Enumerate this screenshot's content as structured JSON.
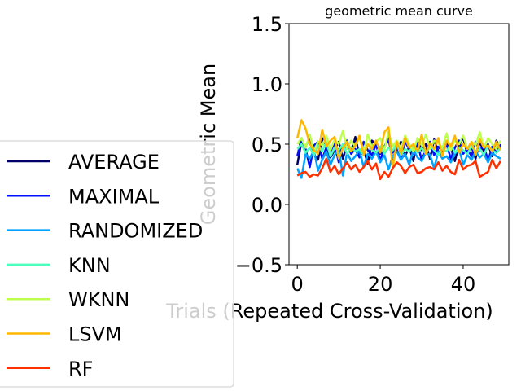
{
  "chart_data": {
    "type": "line",
    "title": "geometric mean curve",
    "xlabel": "Trials (Repeated Cross-Validation)",
    "ylabel": "Geometric Mean",
    "xlim": [
      -2,
      51
    ],
    "ylim": [
      -0.5,
      1.5
    ],
    "xticks": [
      0,
      20,
      40
    ],
    "xtick_labels": [
      "0",
      "20",
      "40"
    ],
    "yticks": [
      1.5,
      1.0,
      0.5,
      0.0,
      -0.5
    ],
    "ytick_labels": [
      "1.5",
      "1.0",
      "0.5",
      "0.0",
      "−0.5"
    ],
    "grid": false,
    "legend_position": "left, outside plot",
    "x": [
      0,
      1,
      2,
      3,
      4,
      5,
      6,
      7,
      8,
      9,
      10,
      11,
      12,
      13,
      14,
      15,
      16,
      17,
      18,
      19,
      20,
      21,
      22,
      23,
      24,
      25,
      26,
      27,
      28,
      29,
      30,
      31,
      32,
      33,
      34,
      35,
      36,
      37,
      38,
      39,
      40,
      41,
      42,
      43,
      44,
      45,
      46,
      47,
      48,
      49
    ],
    "series": [
      {
        "name": "AVERAGE",
        "color": "#00006b",
        "values": [
          0.33,
          0.52,
          0.48,
          0.55,
          0.41,
          0.37,
          0.55,
          0.47,
          0.39,
          0.45,
          0.52,
          0.38,
          0.5,
          0.42,
          0.56,
          0.4,
          0.45,
          0.34,
          0.53,
          0.5,
          0.42,
          0.48,
          0.55,
          0.36,
          0.46,
          0.52,
          0.4,
          0.48,
          0.36,
          0.55,
          0.45,
          0.5,
          0.38,
          0.54,
          0.44,
          0.41,
          0.52,
          0.47,
          0.36,
          0.5,
          0.55,
          0.42,
          0.48,
          0.38,
          0.52,
          0.44,
          0.5,
          0.4,
          0.53,
          0.46
        ]
      },
      {
        "name": "MAXIMAL",
        "color": "#0010ff",
        "values": [
          0.4,
          0.55,
          0.46,
          0.31,
          0.49,
          0.52,
          0.38,
          0.47,
          0.44,
          0.51,
          0.35,
          0.48,
          0.53,
          0.42,
          0.46,
          0.39,
          0.52,
          0.45,
          0.41,
          0.5,
          0.36,
          0.48,
          0.53,
          0.43,
          0.47,
          0.39,
          0.52,
          0.46,
          0.42,
          0.5,
          0.37,
          0.45,
          0.52,
          0.41,
          0.48,
          0.44,
          0.5,
          0.38,
          0.47,
          0.53,
          0.42,
          0.46,
          0.4,
          0.52,
          0.45,
          0.49,
          0.36,
          0.48,
          0.43,
          0.5
        ]
      },
      {
        "name": "RANDOMIZED",
        "color": "#00a2ff",
        "values": [
          0.3,
          0.22,
          0.42,
          0.38,
          0.45,
          0.28,
          0.37,
          0.44,
          0.33,
          0.41,
          0.46,
          0.24,
          0.43,
          0.36,
          0.4,
          0.45,
          0.31,
          0.42,
          0.38,
          0.44,
          0.35,
          0.41,
          0.29,
          0.4,
          0.44,
          0.37,
          0.42,
          0.33,
          0.45,
          0.39,
          0.36,
          0.43,
          0.41,
          0.3,
          0.44,
          0.38,
          0.4,
          0.35,
          0.42,
          0.46,
          0.33,
          0.41,
          0.37,
          0.44,
          0.39,
          0.42,
          0.35,
          0.43,
          0.4,
          0.38
        ]
      },
      {
        "name": "KNN",
        "color": "#4dffbd",
        "values": [
          0.46,
          0.5,
          0.43,
          0.47,
          0.41,
          0.49,
          0.44,
          0.52,
          0.4,
          0.47,
          0.45,
          0.5,
          0.42,
          0.48,
          0.44,
          0.46,
          0.41,
          0.5,
          0.45,
          0.43,
          0.48,
          0.42,
          0.47,
          0.45,
          0.5,
          0.41,
          0.46,
          0.44,
          0.48,
          0.43,
          0.47,
          0.42,
          0.49,
          0.45,
          0.41,
          0.46,
          0.44,
          0.5,
          0.43,
          0.47,
          0.45,
          0.42,
          0.48,
          0.44,
          0.46,
          0.41,
          0.49,
          0.45,
          0.43,
          0.47
        ]
      },
      {
        "name": "WKNN",
        "color": "#bdff4d",
        "values": [
          0.5,
          0.55,
          0.47,
          0.58,
          0.44,
          0.52,
          0.49,
          0.57,
          0.45,
          0.54,
          0.5,
          0.61,
          0.46,
          0.53,
          0.48,
          0.56,
          0.44,
          0.58,
          0.47,
          0.52,
          0.55,
          0.45,
          0.6,
          0.48,
          0.53,
          0.46,
          0.57,
          0.5,
          0.44,
          0.55,
          0.49,
          0.58,
          0.46,
          0.53,
          0.51,
          0.47,
          0.59,
          0.45,
          0.54,
          0.5,
          0.57,
          0.46,
          0.52,
          0.49,
          0.6,
          0.47,
          0.55,
          0.5,
          0.46,
          0.53
        ]
      },
      {
        "name": "LSVM",
        "color": "#ffb700",
        "values": [
          0.55,
          0.7,
          0.63,
          0.5,
          0.45,
          0.42,
          0.62,
          0.48,
          0.53,
          0.56,
          0.38,
          0.47,
          0.52,
          0.44,
          0.49,
          0.57,
          0.41,
          0.5,
          0.46,
          0.53,
          0.43,
          0.6,
          0.64,
          0.3,
          0.52,
          0.42,
          0.55,
          0.47,
          0.5,
          0.44,
          0.58,
          0.42,
          0.51,
          0.46,
          0.55,
          0.4,
          0.53,
          0.48,
          0.57,
          0.43,
          0.5,
          0.46,
          0.52,
          0.41,
          0.54,
          0.47,
          0.49,
          0.44,
          0.52,
          0.45
        ]
      },
      {
        "name": "RF",
        "color": "#ff3000",
        "values": [
          0.24,
          0.26,
          0.27,
          0.23,
          0.25,
          0.24,
          0.3,
          0.38,
          0.27,
          0.32,
          0.25,
          0.3,
          0.35,
          0.29,
          0.33,
          0.27,
          0.31,
          0.36,
          0.29,
          0.34,
          0.21,
          0.27,
          0.23,
          0.3,
          0.35,
          0.32,
          0.26,
          0.31,
          0.33,
          0.26,
          0.27,
          0.3,
          0.31,
          0.29,
          0.35,
          0.28,
          0.32,
          0.27,
          0.25,
          0.37,
          0.29,
          0.32,
          0.33,
          0.36,
          0.23,
          0.25,
          0.27,
          0.37,
          0.3,
          0.36
        ]
      }
    ]
  }
}
